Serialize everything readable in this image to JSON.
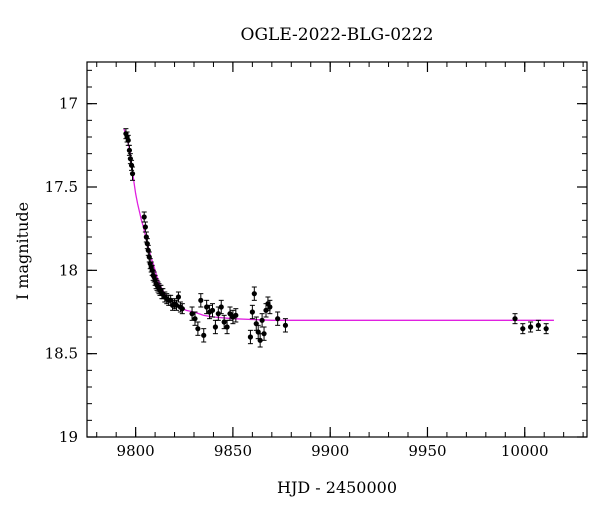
{
  "chart_data": {
    "type": "scatter",
    "title": "OGLE-2022-BLG-0222",
    "xlabel": "HJD - 2450000",
    "ylabel": "I magnitude",
    "xlim": [
      9775,
      10032
    ],
    "ylim": [
      19.0,
      16.75
    ],
    "y_inverted": true,
    "grid": false,
    "xticks": [
      9800,
      9850,
      9900,
      9950,
      10000
    ],
    "xtick_labels": [
      "9800",
      "9850",
      "9900",
      "9950",
      "10000"
    ],
    "yticks": [
      17.0,
      17.5,
      18.0,
      18.5,
      19.0
    ],
    "ytick_labels": [
      "17",
      "17.5",
      "18",
      "18.5",
      "19"
    ],
    "colors": {
      "points": "#000000",
      "model": "#e020e0"
    },
    "series": [
      {
        "type": "scatter",
        "x": [
          9795.0,
          9795.6,
          9796.2,
          9796.8,
          9797.3,
          9797.9,
          9798.4,
          9804.4,
          9805.0,
          9805.5,
          9806.0,
          9806.5,
          9807.0,
          9807.5,
          9808.0,
          9808.5,
          9809.0,
          9809.5,
          9810.0,
          9810.5,
          9811.0,
          9811.5,
          9812.0,
          9812.5,
          9813.0,
          9813.5,
          9814.0,
          9815.0,
          9816.0,
          9817.0,
          9818.0,
          9819.0,
          9820.0,
          9821.0,
          9822.0,
          9823.0,
          9824.0,
          9829.0,
          9830.5,
          9832.0,
          9833.5,
          9835.0,
          9836.5,
          9838.0,
          9839.5,
          9841.0,
          9842.5,
          9844.0,
          9845.5,
          9847.0,
          9848.5,
          9850.0,
          9851.5,
          9859.0,
          9860.0,
          9861.0,
          9862.0,
          9863.0,
          9864.0,
          9865.0,
          9866.0,
          9867.0,
          9868.0,
          9869.0,
          9873.0,
          9877.0,
          9995.0,
          9999.0,
          10003.0,
          10007.0,
          10011.0
        ],
        "y": [
          17.18,
          17.2,
          17.22,
          17.28,
          17.33,
          17.37,
          17.42,
          17.68,
          17.74,
          17.8,
          17.84,
          17.88,
          17.92,
          17.96,
          17.98,
          18.0,
          18.03,
          18.04,
          18.06,
          18.08,
          18.09,
          18.1,
          18.11,
          18.12,
          18.12,
          18.14,
          18.14,
          18.16,
          18.17,
          18.18,
          18.18,
          18.21,
          18.2,
          18.21,
          18.16,
          18.22,
          18.23,
          18.26,
          18.29,
          18.35,
          18.18,
          18.39,
          18.22,
          18.25,
          18.24,
          18.34,
          18.26,
          18.22,
          18.31,
          18.34,
          18.26,
          18.28,
          18.27,
          18.4,
          18.25,
          18.14,
          18.32,
          18.37,
          18.42,
          18.3,
          18.38,
          18.24,
          18.2,
          18.22,
          18.29,
          18.33,
          18.29,
          18.35,
          18.34,
          18.33,
          18.35
        ],
        "yerr": [
          0.03,
          0.03,
          0.03,
          0.03,
          0.03,
          0.03,
          0.04,
          0.03,
          0.03,
          0.03,
          0.03,
          0.03,
          0.03,
          0.03,
          0.03,
          0.03,
          0.03,
          0.03,
          0.03,
          0.03,
          0.03,
          0.03,
          0.03,
          0.03,
          0.03,
          0.03,
          0.03,
          0.03,
          0.03,
          0.03,
          0.03,
          0.03,
          0.03,
          0.03,
          0.03,
          0.03,
          0.03,
          0.04,
          0.04,
          0.04,
          0.04,
          0.04,
          0.04,
          0.04,
          0.04,
          0.04,
          0.04,
          0.04,
          0.04,
          0.04,
          0.04,
          0.04,
          0.04,
          0.04,
          0.04,
          0.04,
          0.04,
          0.04,
          0.04,
          0.04,
          0.04,
          0.04,
          0.04,
          0.04,
          0.04,
          0.04,
          0.03,
          0.03,
          0.03,
          0.03,
          0.03
        ]
      },
      {
        "type": "line",
        "x": [
          9794.0,
          9795.0,
          9796.0,
          9797.0,
          9798.0,
          9799.0,
          9800.0,
          9801.0,
          9802.0,
          9803.0,
          9804.0,
          9805.0,
          9806.0,
          9807.0,
          9808.0,
          9809.0,
          9810.0,
          9811.0,
          9812.0,
          9813.0,
          9814.0,
          9815.0,
          9816.0,
          9818.0,
          9820.0,
          9823.0,
          9826.0,
          9830.0,
          9835.0,
          9840.0,
          9850.0,
          9870.0,
          9900.0,
          9950.0,
          10000.0,
          10015.0
        ],
        "y": [
          17.15,
          17.19,
          17.23,
          17.28,
          17.37,
          17.46,
          17.54,
          17.6,
          17.65,
          17.7,
          17.74,
          17.79,
          17.84,
          17.88,
          17.93,
          17.96,
          18.0,
          18.04,
          18.07,
          18.1,
          18.12,
          18.14,
          18.16,
          18.18,
          18.2,
          18.22,
          18.24,
          18.25,
          18.27,
          18.28,
          18.29,
          18.3,
          18.3,
          18.3,
          18.3,
          18.3
        ]
      }
    ]
  }
}
